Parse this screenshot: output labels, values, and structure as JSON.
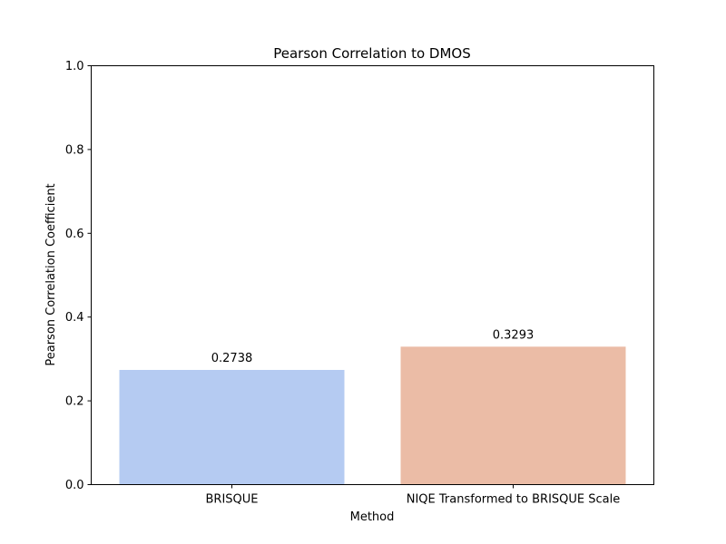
{
  "chart_data": {
    "type": "bar",
    "title": "Pearson Correlation to DMOS",
    "xlabel": "Method",
    "ylabel": "Pearson Correlation Coefficient",
    "categories": [
      "BRISQUE",
      "NIQE Transformed to BRISQUE Scale"
    ],
    "values": [
      0.2738,
      0.3293
    ],
    "data_labels": [
      "0.2738",
      "0.3293"
    ],
    "colors": [
      "#b5cbf2",
      "#ebbca6"
    ],
    "ylim": [
      0,
      1.0
    ],
    "yticks": [
      0.0,
      0.2,
      0.4,
      0.6,
      0.8,
      1.0
    ],
    "ytick_labels": [
      "0.0",
      "0.2",
      "0.4",
      "0.6",
      "0.8",
      "1.0"
    ],
    "grid": false,
    "legend": "none"
  }
}
